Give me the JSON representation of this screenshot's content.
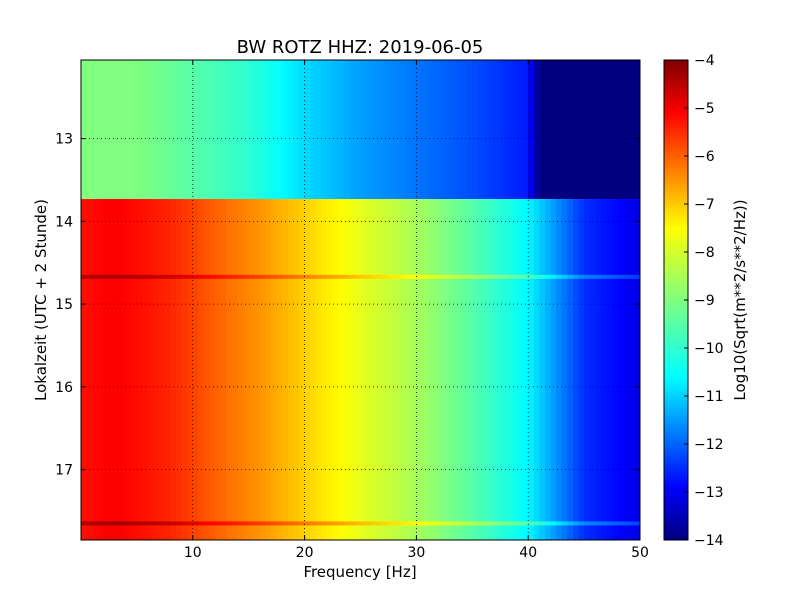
{
  "chart_data": {
    "type": "heatmap",
    "title": "BW ROTZ HHZ: 2019-06-05",
    "xlabel": "Frequency [Hz]",
    "ylabel": "Lokalzeit (UTC + 2 Stunde)",
    "xlim": [
      0,
      50
    ],
    "ylim": [
      12.05,
      17.85
    ],
    "y_inverted": true,
    "grid": true,
    "x_ticks": [
      10,
      20,
      30,
      40,
      50
    ],
    "y_ticks": [
      13,
      14,
      15,
      16,
      17
    ],
    "colormap": "jet",
    "colorbar": {
      "label": "Log10(Sqrt(m**2/s**2/Hz))",
      "range": [
        -14,
        -4
      ],
      "ticks": [
        -4,
        -5,
        -6,
        -7,
        -8,
        -9,
        -10,
        -11,
        -12,
        -13,
        -14
      ]
    },
    "segments": [
      {
        "name": "",
        "time_range": [
          12.05,
          13.73
        ],
        "frequency_hz": [
          0,
          5,
          10,
          15,
          20,
          25,
          30,
          35,
          40,
          41,
          42,
          50
        ],
        "log10_amplitude": [
          -9.0,
          -9.0,
          -9.4,
          -9.8,
          -10.6,
          -11.2,
          -11.6,
          -12.0,
          -12.5,
          -14.0,
          -14.0,
          -14.0
        ]
      },
      {
        "name": "",
        "time_range": [
          13.73,
          17.85
        ],
        "frequency_hz": [
          0,
          3,
          8,
          12,
          16,
          20,
          25,
          30,
          35,
          40,
          45,
          50
        ],
        "log10_amplitude": [
          -5.4,
          -5.2,
          -5.6,
          -6.2,
          -6.7,
          -7.3,
          -8.0,
          -8.6,
          -9.4,
          -10.3,
          -12.3,
          -13.0
        ]
      }
    ],
    "bands": [
      {
        "time": 14.67,
        "delta": 0.8
      },
      {
        "time": 17.65,
        "delta": 0.9
      }
    ]
  }
}
